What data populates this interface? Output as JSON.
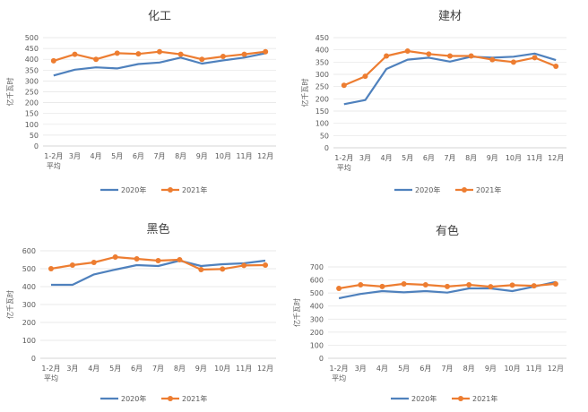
{
  "chart_data": [
    {
      "type": "line",
      "title": "化工",
      "ylabel": "亿千瓦时",
      "categories": [
        "1-2月\n平均",
        "3月",
        "4月",
        "5月",
        "6月",
        "7月",
        "8月",
        "9月",
        "10月",
        "11月",
        "12月"
      ],
      "ylim": [
        0,
        500
      ],
      "yticks": [
        0,
        50,
        100,
        150,
        200,
        250,
        300,
        350,
        400,
        450,
        500
      ],
      "grid": true,
      "legend": "bottom",
      "series": [
        {
          "name": "2020年",
          "color": "#4f81bd",
          "markers": false,
          "values": [
            325,
            352,
            363,
            358,
            378,
            385,
            408,
            380,
            395,
            408,
            428
          ]
        },
        {
          "name": "2021年",
          "color": "#ed7d31",
          "markers": true,
          "values": [
            393,
            423,
            400,
            428,
            425,
            435,
            423,
            400,
            413,
            423,
            435
          ]
        }
      ]
    },
    {
      "type": "line",
      "title": "建材",
      "ylabel": "亿千瓦时",
      "categories": [
        "1-2月\n平均",
        "3月",
        "4月",
        "5月",
        "6月",
        "7月",
        "8月",
        "9月",
        "10月",
        "11月",
        "12月"
      ],
      "ylim": [
        0,
        450
      ],
      "yticks": [
        0,
        50,
        100,
        150,
        200,
        250,
        300,
        350,
        400,
        450
      ],
      "grid": true,
      "legend": "bottom",
      "series": [
        {
          "name": "2020年",
          "color": "#4f81bd",
          "markers": false,
          "values": [
            178,
            195,
            322,
            360,
            368,
            352,
            372,
            368,
            372,
            385,
            358
          ]
        },
        {
          "name": "2021年",
          "color": "#ed7d31",
          "markers": true,
          "values": [
            255,
            292,
            375,
            395,
            383,
            375,
            375,
            360,
            350,
            368,
            333
          ]
        }
      ]
    },
    {
      "type": "line",
      "title": "黑色",
      "ylabel": "亿千瓦时",
      "categories": [
        "1-2月\n平均",
        "3月",
        "4月",
        "5月",
        "6月",
        "7月",
        "8月",
        "9月",
        "10月",
        "11月",
        "12月"
      ],
      "ylim": [
        0,
        600
      ],
      "yticks": [
        0,
        100,
        200,
        300,
        400,
        500,
        600
      ],
      "grid": true,
      "legend": "bottom",
      "series": [
        {
          "name": "2020年",
          "color": "#4f81bd",
          "markers": false,
          "values": [
            410,
            410,
            468,
            495,
            520,
            515,
            545,
            515,
            525,
            530,
            545
          ]
        },
        {
          "name": "2021年",
          "color": "#ed7d31",
          "markers": true,
          "values": [
            500,
            520,
            535,
            565,
            555,
            545,
            550,
            495,
            498,
            518,
            520
          ]
        }
      ]
    },
    {
      "type": "line",
      "title": "有色",
      "ylabel": "亿千瓦时",
      "categories": [
        "1-2月\n平均",
        "3月",
        "4月",
        "5月",
        "6月",
        "7月",
        "8月",
        "9月",
        "10月",
        "11月",
        "12月"
      ],
      "ylim": [
        0,
        700
      ],
      "yticks": [
        0,
        100,
        200,
        300,
        400,
        500,
        600,
        700
      ],
      "grid": true,
      "legend": "bottom",
      "series": [
        {
          "name": "2020年",
          "color": "#4f81bd",
          "markers": false,
          "values": [
            460,
            493,
            515,
            505,
            515,
            503,
            535,
            535,
            515,
            548,
            585
          ]
        },
        {
          "name": "2021年",
          "color": "#ed7d31",
          "markers": true,
          "values": [
            535,
            563,
            550,
            570,
            563,
            550,
            563,
            548,
            560,
            555,
            570
          ]
        }
      ]
    }
  ]
}
